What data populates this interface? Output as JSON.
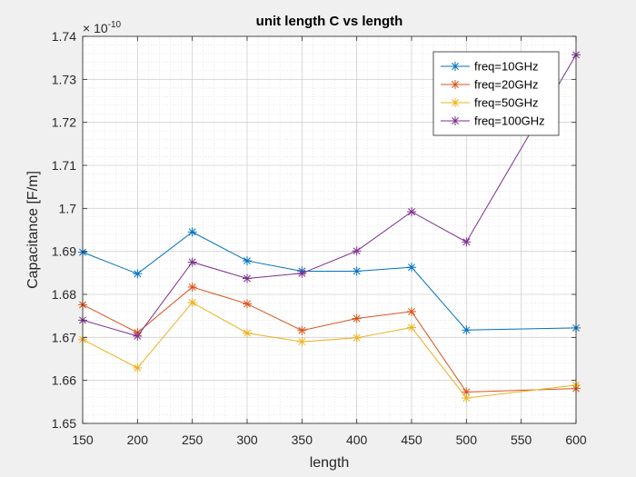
{
  "chart_data": {
    "type": "line",
    "title": "unit length C vs length",
    "xlabel": "length",
    "ylabel": "Capacitance [F/m]",
    "y_exponent_base": "× 10",
    "y_exponent_power": "-10",
    "xlim": [
      150,
      600
    ],
    "ylim": [
      1.65,
      1.74
    ],
    "x_ticks": [
      150,
      200,
      250,
      300,
      350,
      400,
      450,
      500,
      550,
      600
    ],
    "y_ticks": [
      1.65,
      1.66,
      1.67,
      1.68,
      1.69,
      1.7,
      1.71,
      1.72,
      1.73,
      1.74
    ],
    "x_tick_labels": [
      "150",
      "200",
      "250",
      "300",
      "350",
      "400",
      "450",
      "500",
      "550",
      "600"
    ],
    "y_tick_labels": [
      "1.65",
      "1.66",
      "1.67",
      "1.68",
      "1.69",
      "1.7",
      "1.71",
      "1.72",
      "1.73",
      "1.74"
    ],
    "grid": true,
    "minor_grid": true,
    "marker": "asterisk",
    "legend_position": "top-right",
    "x": [
      150,
      200,
      250,
      300,
      350,
      400,
      450,
      500,
      600
    ],
    "series": [
      {
        "name": "freq=10GHz",
        "color": "#0072BD",
        "values": [
          1.6898,
          1.6848,
          1.6945,
          1.6878,
          1.6854,
          1.6854,
          1.6863,
          1.6717,
          1.6722
        ]
      },
      {
        "name": "freq=20GHz",
        "color": "#D95319",
        "values": [
          1.6776,
          1.6711,
          1.6817,
          1.6778,
          1.6716,
          1.6744,
          1.676,
          1.6573,
          1.6581
        ]
      },
      {
        "name": "freq=50GHz",
        "color": "#EDB120",
        "values": [
          1.6695,
          1.6629,
          1.6781,
          1.671,
          1.669,
          1.6699,
          1.6723,
          1.6559,
          1.6589
        ]
      },
      {
        "name": "freq=100GHz",
        "color": "#7E2F8E",
        "values": [
          1.674,
          1.6703,
          1.6875,
          1.6837,
          1.6849,
          1.6901,
          1.6992,
          1.6922,
          1.7357
        ]
      }
    ]
  }
}
